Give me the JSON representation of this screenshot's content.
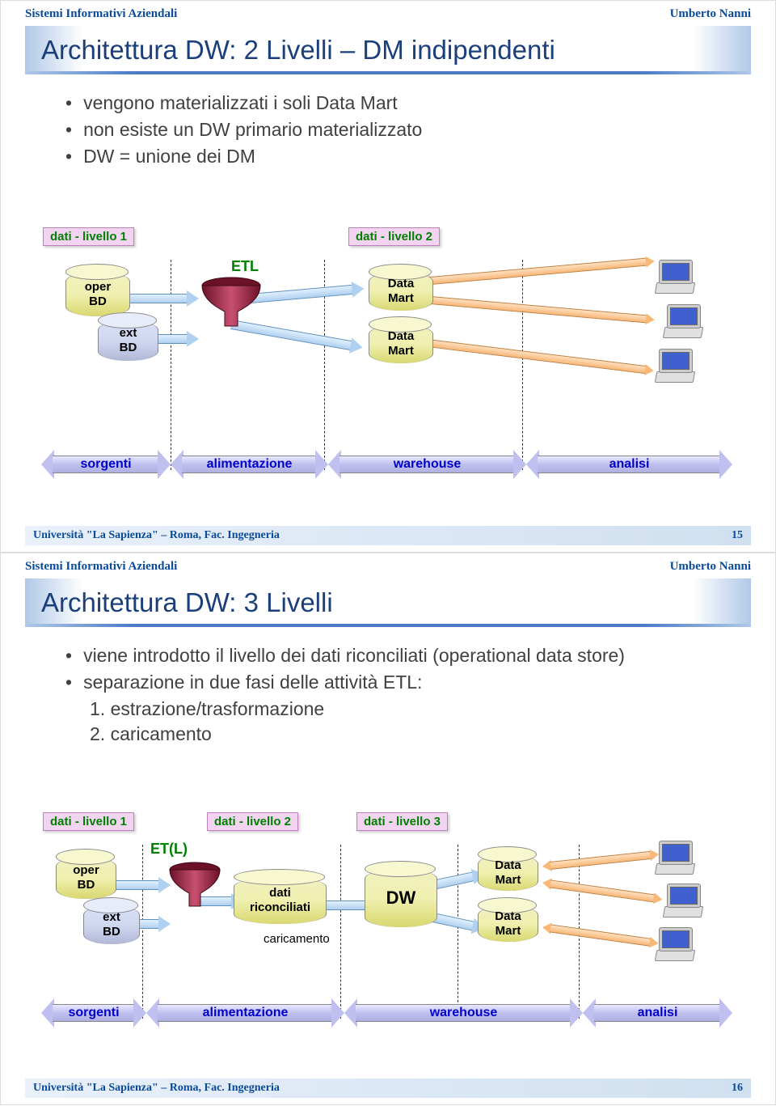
{
  "meta": {
    "course": "Sistemi Informativi Aziendali",
    "author": "Umberto Nanni",
    "university": "Università \"La Sapienza\" – Roma, Fac. Ingegneria"
  },
  "colors": {
    "title_text": "#1a3f7a",
    "header_text": "#0a4a9a",
    "bullet_text": "#404040",
    "level_label_bg": "#f2d4f0",
    "level_label_text": "#008000",
    "etl_text": "#008000",
    "band_text": "#0000cc",
    "band_fill": "#c0c0f0",
    "cyl_yellow": "#f0f0b0",
    "cyl_blue": "#d0d8f0",
    "funnel_dark": "#6b1228",
    "funnel_light": "#c85070",
    "orange": "#f8b878",
    "blue_arrow": "#b0d0f0",
    "screen": "#4060d0"
  },
  "slide1": {
    "number": "15",
    "title": "Architettura DW: 2 Livelli – DM indipendenti",
    "bullets": [
      "vengono materializzati i soli Data Mart",
      "non esiste un DW primario materializzato",
      "DW = unione dei DM"
    ],
    "levels": [
      "dati - livello 1",
      "dati - livello 2"
    ],
    "db": {
      "oper": "oper\nBD",
      "ext": "ext\nBD",
      "dm": "Data\nMart"
    },
    "etl": "ETL",
    "bands": [
      "sorgenti",
      "alimentazione",
      "warehouse",
      "analisi"
    ]
  },
  "slide2": {
    "number": "16",
    "title": "Architettura DW: 3 Livelli",
    "bullets": [
      "viene introdotto il livello dei dati riconciliati (operational data store)",
      "separazione in due fasi delle attività ETL:"
    ],
    "numbered": [
      "1. estrazione/trasformazione",
      "2. caricamento"
    ],
    "levels": [
      "dati - livello 1",
      "dati - livello 2",
      "dati - livello 3"
    ],
    "db": {
      "oper": "oper\nBD",
      "ext": "ext\nBD",
      "ric": "dati\nriconciliati",
      "dw": "DW",
      "dm": "Data\nMart"
    },
    "etl": "ET(L)",
    "caricamento": "caricamento",
    "bands": [
      "sorgenti",
      "alimentazione",
      "warehouse",
      "analisi"
    ]
  }
}
